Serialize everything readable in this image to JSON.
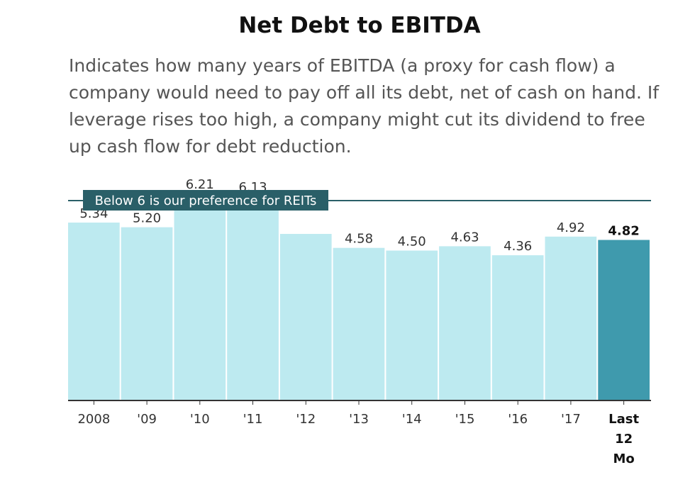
{
  "chart_data": {
    "type": "bar",
    "title": "Net Debt to EBITDA",
    "subtitle": "Indicates how many years of EBITDA (a proxy for cash flow) a company would need to pay off all its debt, net of cash on hand. If leverage rises too high, a company might cut its dividend to free up cash flow for debt reduction.",
    "categories": [
      "2008",
      "'09",
      "'10",
      "'11",
      "'12",
      "'13",
      "'14",
      "'15",
      "'16",
      "'17",
      "Last 12 Mo"
    ],
    "values": [
      5.34,
      5.2,
      6.21,
      6.13,
      5.0,
      4.58,
      4.5,
      4.63,
      4.36,
      4.92,
      4.82
    ],
    "value_labels": [
      "5.34",
      "5.20",
      "6.21",
      "6.13",
      "",
      "4.58",
      "4.50",
      "4.63",
      "4.36",
      "4.92",
      "4.82"
    ],
    "highlight_index": 10,
    "ylim": [
      0,
      6
    ],
    "xlabel": "",
    "ylabel": "",
    "grid": false,
    "reference_line": {
      "value": 6,
      "label": "Below 6 is our preference for REITs"
    },
    "colors": {
      "bar": "#bdeaf0",
      "highlight": "#3f9aad",
      "reference": "#2a5f68",
      "axis": "#333333"
    }
  }
}
